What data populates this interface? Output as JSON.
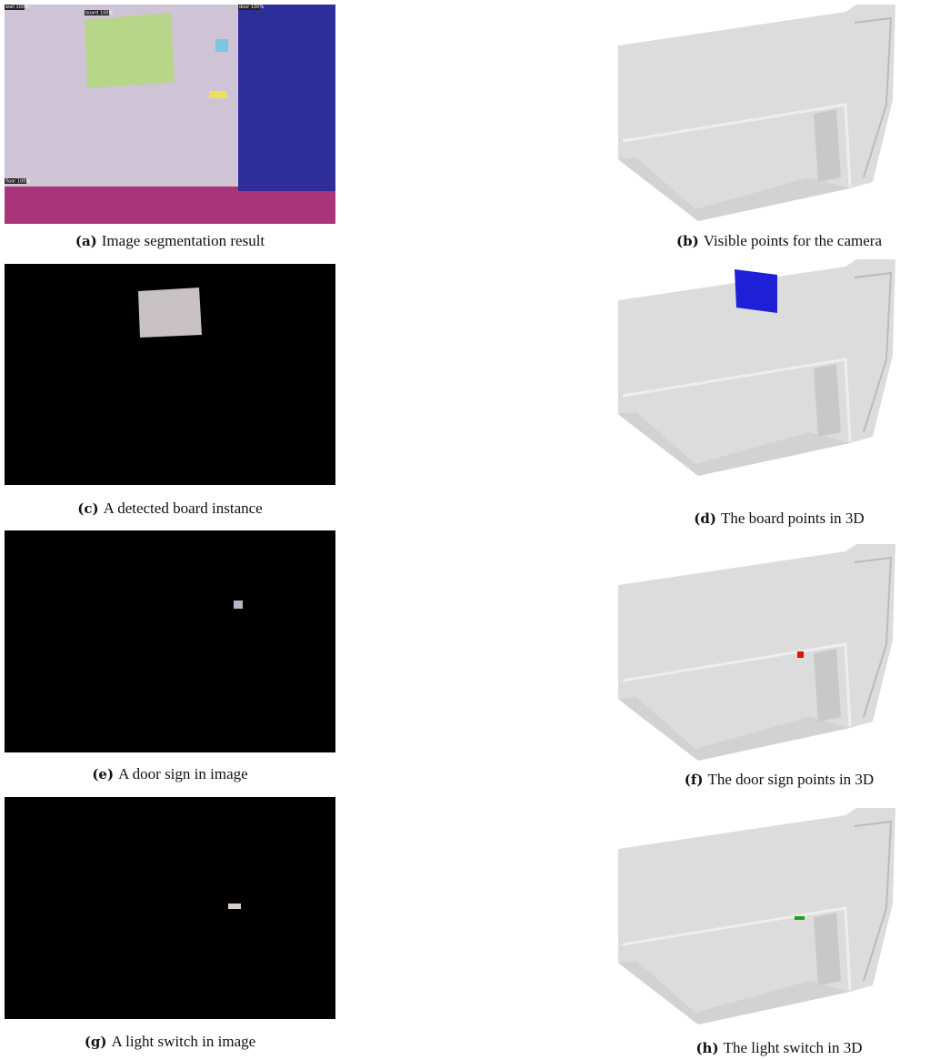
{
  "panels": [
    {
      "label": "(a)",
      "caption": "Image segmentation result"
    },
    {
      "label": "(b)",
      "caption": "Visible points for the camera"
    },
    {
      "label": "(c)",
      "caption": "A detected board instance"
    },
    {
      "label": "(d)",
      "caption": "The board points in 3D"
    },
    {
      "label": "(e)",
      "caption": "A door sign in image"
    },
    {
      "label": "(f)",
      "caption": "The door sign points in 3D"
    },
    {
      "label": "(g)",
      "caption": "A light switch in image"
    },
    {
      "label": "(h)",
      "caption": "The light switch in 3D"
    }
  ],
  "segmentation_labels": [
    "wall 100%",
    "board 100%",
    "door 100%",
    "floor 100%"
  ]
}
